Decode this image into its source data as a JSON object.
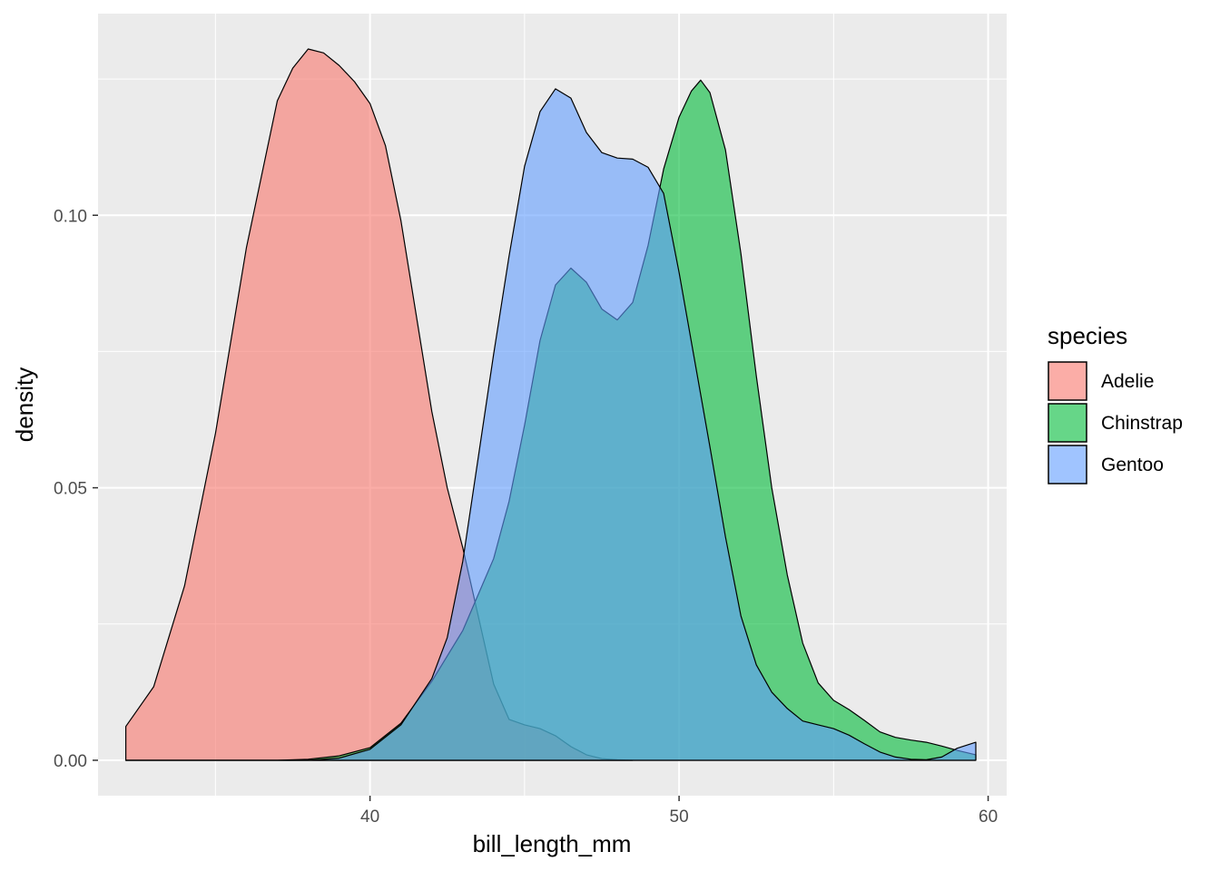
{
  "chart_data": {
    "type": "area",
    "subtype": "density",
    "xlabel": "bill_length_mm",
    "ylabel": "density",
    "xlim": [
      31.2,
      60.6
    ],
    "ylim": [
      -0.0065,
      0.137
    ],
    "x_ticks": [
      40,
      50,
      60
    ],
    "x_tick_labels": [
      "40",
      "50",
      "60"
    ],
    "x_minor_ticks": [
      35,
      45,
      55
    ],
    "y_ticks": [
      0.0,
      0.05,
      0.1
    ],
    "y_tick_labels": [
      "0.00",
      "0.05",
      "0.10"
    ],
    "y_minor_ticks": [
      0.025,
      0.075,
      0.125
    ],
    "grid": true,
    "panel_background": "#ebebeb",
    "fill_alpha": 0.6,
    "legend": {
      "title": "species",
      "position": "right"
    },
    "series": [
      {
        "name": "Adelie",
        "color": "#F8766D",
        "points": [
          [
            32.1,
            0.0062
          ],
          [
            33.0,
            0.0135
          ],
          [
            34.0,
            0.032
          ],
          [
            35.0,
            0.06
          ],
          [
            36.0,
            0.094
          ],
          [
            37.0,
            0.121
          ],
          [
            37.5,
            0.127
          ],
          [
            38.0,
            0.1305
          ],
          [
            38.5,
            0.1298
          ],
          [
            39.0,
            0.1275
          ],
          [
            39.5,
            0.1245
          ],
          [
            40.0,
            0.1205
          ],
          [
            40.5,
            0.1128
          ],
          [
            41.0,
            0.099
          ],
          [
            41.5,
            0.0815
          ],
          [
            42.0,
            0.064
          ],
          [
            42.5,
            0.05
          ],
          [
            43.0,
            0.039
          ],
          [
            43.5,
            0.0265
          ],
          [
            44.0,
            0.014
          ],
          [
            44.5,
            0.0075
          ],
          [
            45.0,
            0.0065
          ],
          [
            45.5,
            0.0058
          ],
          [
            46.0,
            0.0045
          ],
          [
            46.5,
            0.0025
          ],
          [
            47.0,
            0.001
          ],
          [
            47.5,
            0.0003
          ],
          [
            48.0,
            0.0001
          ],
          [
            48.5,
            0.0
          ]
        ]
      },
      {
        "name": "Chinstrap",
        "color": "#00BA38",
        "points": [
          [
            32.1,
            0.0
          ],
          [
            37.0,
            0.0
          ],
          [
            38.0,
            0.0002
          ],
          [
            39.0,
            0.0008
          ],
          [
            40.0,
            0.0023
          ],
          [
            41.0,
            0.0068
          ],
          [
            42.0,
            0.0145
          ],
          [
            43.0,
            0.0238
          ],
          [
            44.0,
            0.037
          ],
          [
            44.5,
            0.0475
          ],
          [
            45.0,
            0.0615
          ],
          [
            45.5,
            0.077
          ],
          [
            46.0,
            0.0872
          ],
          [
            46.5,
            0.0903
          ],
          [
            47.0,
            0.0877
          ],
          [
            47.5,
            0.0828
          ],
          [
            48.0,
            0.0808
          ],
          [
            48.5,
            0.084
          ],
          [
            49.0,
            0.0945
          ],
          [
            49.5,
            0.1085
          ],
          [
            50.0,
            0.118
          ],
          [
            50.4,
            0.1228
          ],
          [
            50.7,
            0.1248
          ],
          [
            51.0,
            0.1225
          ],
          [
            51.5,
            0.112
          ],
          [
            52.0,
            0.093
          ],
          [
            52.5,
            0.0705
          ],
          [
            53.0,
            0.05
          ],
          [
            53.5,
            0.034
          ],
          [
            54.0,
            0.0215
          ],
          [
            54.5,
            0.0142
          ],
          [
            55.0,
            0.011
          ],
          [
            55.5,
            0.0093
          ],
          [
            56.0,
            0.0073
          ],
          [
            56.5,
            0.0052
          ],
          [
            57.0,
            0.0042
          ],
          [
            57.5,
            0.0037
          ],
          [
            58.0,
            0.0033
          ],
          [
            58.5,
            0.0026
          ],
          [
            59.0,
            0.0018
          ],
          [
            59.6,
            0.001
          ]
        ]
      },
      {
        "name": "Gentoo",
        "color": "#619CFF",
        "points": [
          [
            32.1,
            0.0
          ],
          [
            38.0,
            0.0
          ],
          [
            39.0,
            0.0004
          ],
          [
            40.0,
            0.002
          ],
          [
            41.0,
            0.0065
          ],
          [
            42.0,
            0.015
          ],
          [
            42.5,
            0.0225
          ],
          [
            43.0,
            0.0365
          ],
          [
            43.5,
            0.0555
          ],
          [
            44.0,
            0.0745
          ],
          [
            44.5,
            0.0925
          ],
          [
            45.0,
            0.109
          ],
          [
            45.5,
            0.119
          ],
          [
            46.0,
            0.1232
          ],
          [
            46.5,
            0.1215
          ],
          [
            47.0,
            0.1152
          ],
          [
            47.5,
            0.1115
          ],
          [
            48.0,
            0.1105
          ],
          [
            48.5,
            0.1103
          ],
          [
            49.0,
            0.1088
          ],
          [
            49.5,
            0.104
          ],
          [
            50.0,
            0.0895
          ],
          [
            50.5,
            0.0735
          ],
          [
            51.0,
            0.0575
          ],
          [
            51.5,
            0.041
          ],
          [
            52.0,
            0.0265
          ],
          [
            52.5,
            0.0175
          ],
          [
            53.0,
            0.0125
          ],
          [
            53.5,
            0.0095
          ],
          [
            54.0,
            0.0072
          ],
          [
            54.5,
            0.0065
          ],
          [
            55.0,
            0.0058
          ],
          [
            55.5,
            0.0046
          ],
          [
            56.0,
            0.003
          ],
          [
            56.5,
            0.0015
          ],
          [
            57.0,
            0.0006
          ],
          [
            57.5,
            0.0002
          ],
          [
            58.0,
            0.0001
          ],
          [
            58.5,
            0.0006
          ],
          [
            59.0,
            0.0022
          ],
          [
            59.6,
            0.0033
          ]
        ]
      }
    ]
  }
}
